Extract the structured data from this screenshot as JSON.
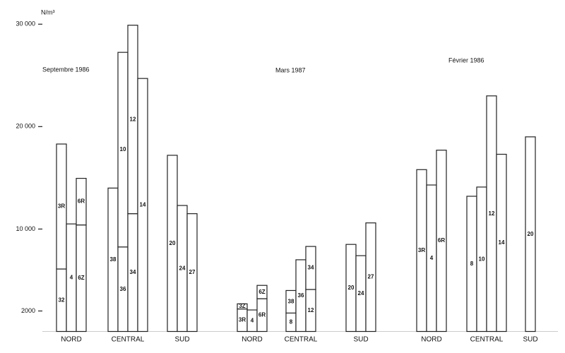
{
  "chart_data": {
    "type": "stacked-bar",
    "y_unit": "N/m³",
    "ylim": [
      0,
      30500
    ],
    "yticks": [
      2000,
      {
        "value": 10000,
        "label": "10 000"
      },
      {
        "value": 20000,
        "label": "20 000"
      },
      {
        "value": 30000,
        "label": "30 000"
      }
    ],
    "panels": [
      {
        "title": "Septembre 1986",
        "groups": [
          {
            "name": "NORD",
            "bars": [
              {
                "segments": [
                  {
                    "label": "32",
                    "value": 6100
                  },
                  {
                    "label": "3R",
                    "value": 12200
                  }
                ]
              },
              {
                "segments": [
                  {
                    "label": "4",
                    "value": 10500
                  }
                ]
              },
              {
                "segments": [
                  {
                    "label": "6Z",
                    "value": 10400
                  },
                  {
                    "label": "6R",
                    "value": 4550
                  }
                ]
              }
            ]
          },
          {
            "name": "CENTRAL",
            "bars": [
              {
                "segments": [
                  {
                    "label": "38",
                    "value": 14000
                  }
                ]
              },
              {
                "segments": [
                  {
                    "label": "36",
                    "value": 8250
                  },
                  {
                    "label": "10",
                    "value": 19000
                  }
                ]
              },
              {
                "segments": [
                  {
                    "label": "34",
                    "value": 11500
                  },
                  {
                    "label": "12",
                    "value": 18400
                  }
                ]
              },
              {
                "segments": [
                  {
                    "label": "14",
                    "value": 24700
                  }
                ]
              }
            ]
          },
          {
            "name": "SUD",
            "bars": [
              {
                "segments": [
                  {
                    "label": "20",
                    "value": 17200
                  }
                ]
              },
              {
                "segments": [
                  {
                    "label": "24",
                    "value": 12300
                  }
                ]
              },
              {
                "segments": [
                  {
                    "label": "27",
                    "value": 11500
                  }
                ]
              }
            ]
          }
        ]
      },
      {
        "title": "Mars 1987",
        "groups": [
          {
            "name": "NORD",
            "bars": [
              {
                "segments": [
                  {
                    "label": "3R",
                    "value": 2200
                  },
                  {
                    "label": "3Z",
                    "value": 500
                  }
                ]
              },
              {
                "segments": [
                  {
                    "label": "4",
                    "value": 2100
                  }
                ]
              },
              {
                "segments": [
                  {
                    "label": "6R",
                    "value": 3200
                  },
                  {
                    "label": "6Z",
                    "value": 1300
                  }
                ]
              }
            ]
          },
          {
            "name": "CENTRAL",
            "bars": [
              {
                "segments": [
                  {
                    "label": "8",
                    "value": 1800
                  },
                  {
                    "label": "38",
                    "value": 2200
                  }
                ]
              },
              {
                "segments": [
                  {
                    "label": "36",
                    "value": 7000
                  }
                ]
              },
              {
                "segments": [
                  {
                    "label": "12",
                    "value": 4100
                  },
                  {
                    "label": "34",
                    "value": 4200
                  }
                ]
              }
            ]
          },
          {
            "name": "SUD",
            "bars": [
              {
                "segments": [
                  {
                    "label": "20",
                    "value": 8500
                  }
                ]
              },
              {
                "segments": [
                  {
                    "label": "24",
                    "value": 7400
                  }
                ]
              },
              {
                "segments": [
                  {
                    "label": "27",
                    "value": 10600
                  }
                ]
              }
            ]
          }
        ]
      },
      {
        "title": "Février 1986",
        "groups": [
          {
            "name": "NORD",
            "bars": [
              {
                "segments": [
                  {
                    "label": "3R",
                    "value": 15800
                  }
                ]
              },
              {
                "segments": [
                  {
                    "label": "4",
                    "value": 14300
                  }
                ]
              },
              {
                "segments": [
                  {
                    "label": "6R",
                    "value": 17700
                  }
                ]
              }
            ]
          },
          {
            "name": "CENTRAL",
            "bars": [
              {
                "segments": [
                  {
                    "label": "8",
                    "value": 13200
                  }
                ]
              },
              {
                "segments": [
                  {
                    "label": "10",
                    "value": 14100
                  }
                ]
              },
              {
                "segments": [
                  {
                    "label": "12",
                    "value": 23000
                  }
                ]
              },
              {
                "segments": [
                  {
                    "label": "14",
                    "value": 17300
                  }
                ]
              }
            ]
          },
          {
            "name": "SUD",
            "bars": [
              {
                "segments": [
                  {
                    "label": "20",
                    "value": 19000
                  }
                ]
              }
            ]
          }
        ]
      }
    ]
  }
}
